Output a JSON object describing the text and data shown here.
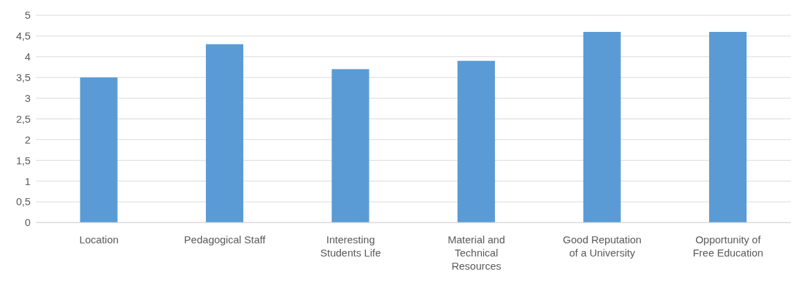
{
  "chart_data": {
    "type": "bar",
    "categories": [
      "Location",
      "Pedagogical Staff",
      "Interesting Students Life",
      "Material and Technical Resources",
      "Good Reputation of a University",
      "Opportunity of Free Education"
    ],
    "values": [
      3.5,
      4.3,
      3.7,
      3.9,
      4.6,
      4.6
    ],
    "color": "#5b9bd5",
    "ylim": [
      0,
      5
    ],
    "yticks": [
      0,
      {
        "value": 0.5,
        "label": "0,5"
      },
      1,
      {
        "value": 1.5,
        "label": "1,5"
      },
      2,
      {
        "value": 2.5,
        "label": "2,5"
      },
      3,
      {
        "value": 3.5,
        "label": "3,5"
      },
      4,
      {
        "value": 4.5,
        "label": "4,5"
      },
      5
    ],
    "grid": "y"
  }
}
